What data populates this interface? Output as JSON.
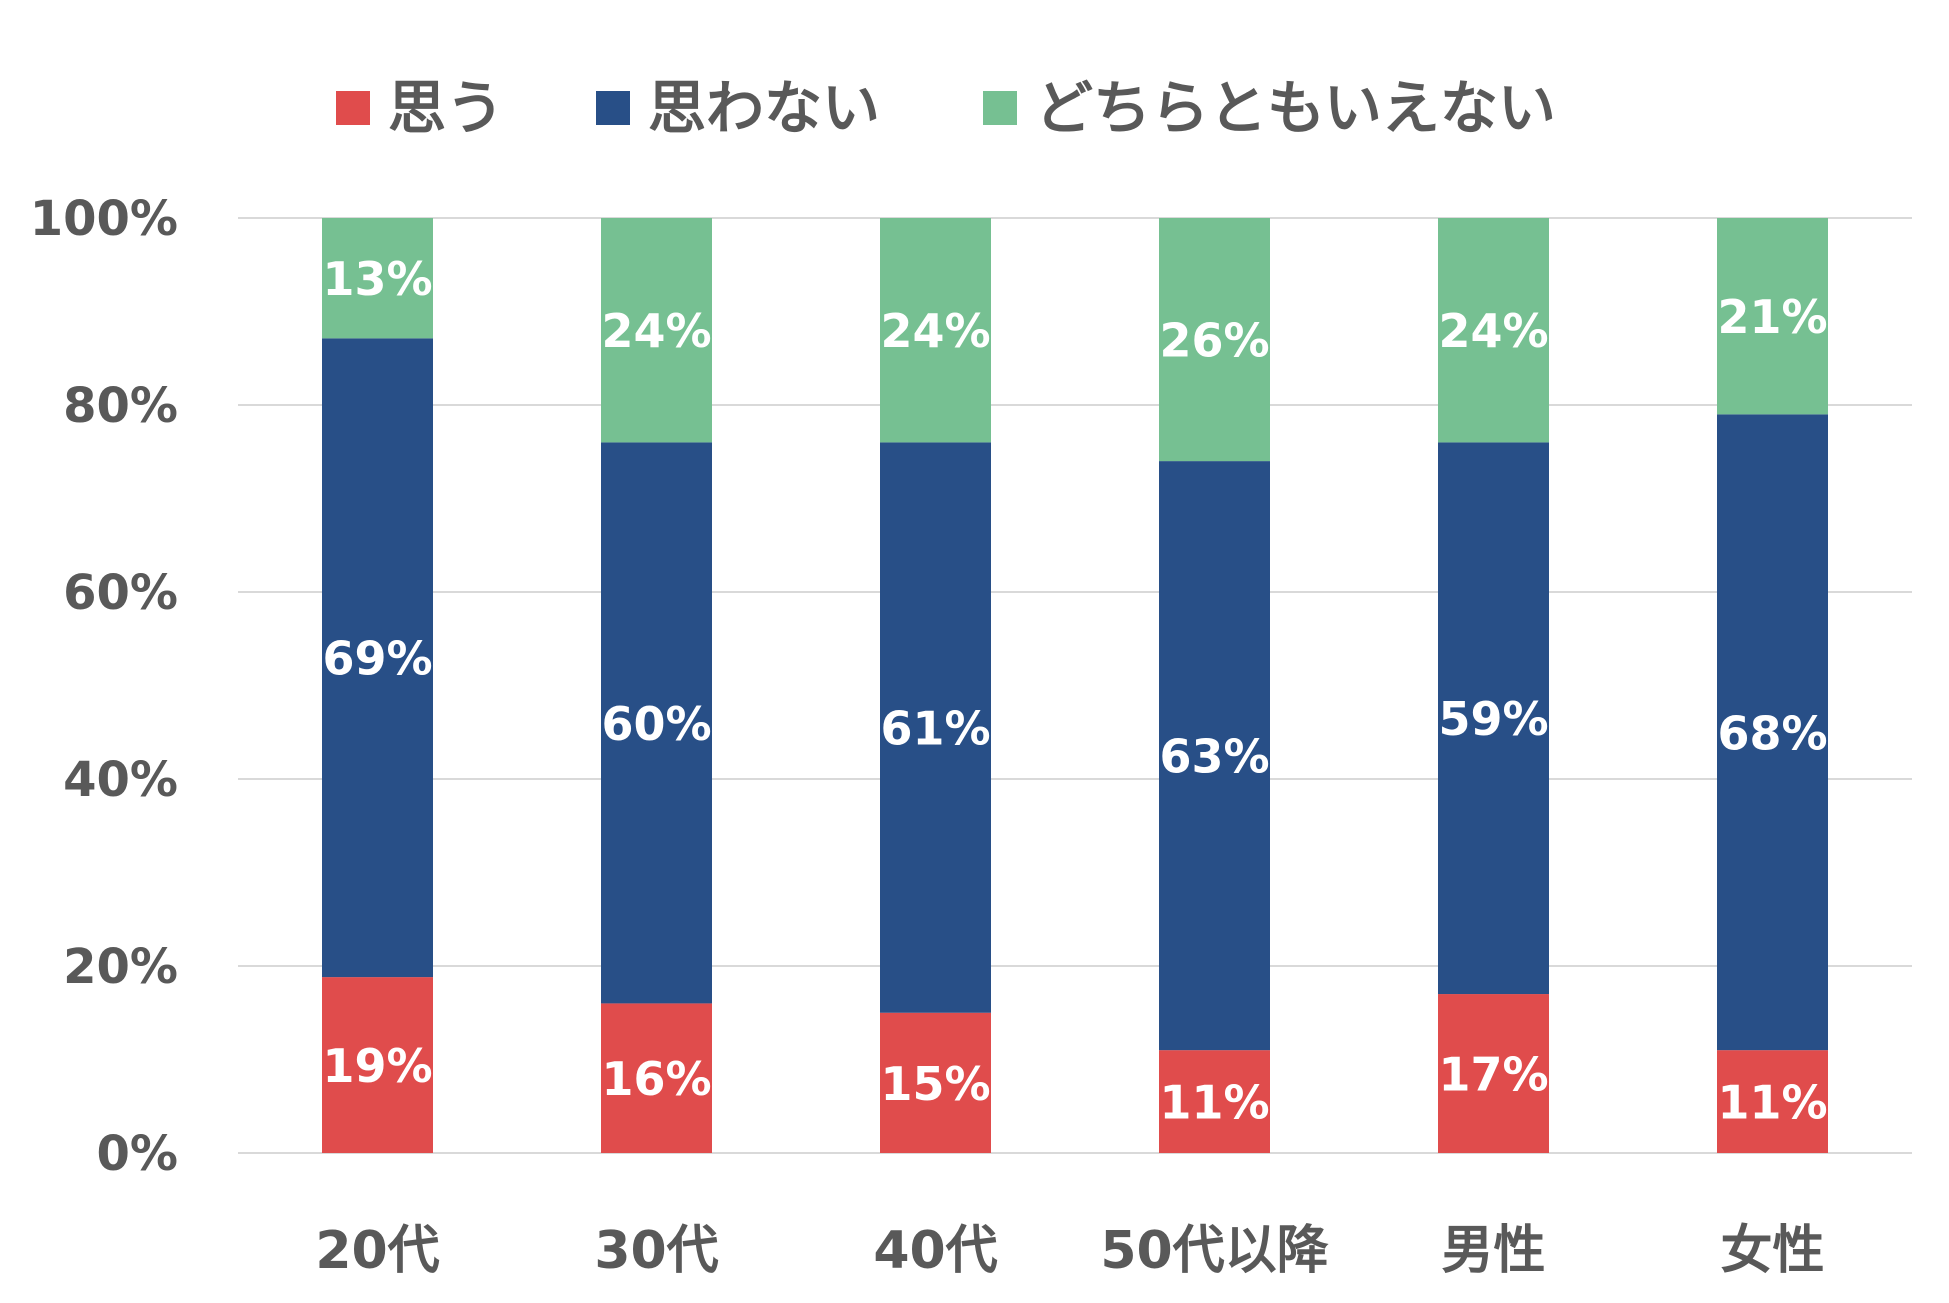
{
  "chart_data": {
    "type": "bar",
    "stacked": true,
    "categories": [
      "20代",
      "30代",
      "40代",
      "50代以降",
      "男性",
      "女性"
    ],
    "series": [
      {
        "name": "思う",
        "color": "#e04c4c",
        "values": [
          19,
          16,
          15,
          11,
          17,
          11
        ],
        "labels": [
          "19%",
          "16%",
          "15%",
          "11%",
          "17%",
          "11%"
        ]
      },
      {
        "name": "思わない",
        "color": "#284f87",
        "values": [
          69,
          60,
          61,
          63,
          59,
          68
        ],
        "labels": [
          "69%",
          "60%",
          "61%",
          "63%",
          "59%",
          "68%"
        ]
      },
      {
        "name": "どちらともいえない",
        "color": "#76c092",
        "values": [
          13,
          24,
          24,
          26,
          24,
          21
        ],
        "labels": [
          "13%",
          "24%",
          "24%",
          "26%",
          "24%",
          "21%"
        ]
      }
    ],
    "yticks": [
      "0%",
      "20%",
      "40%",
      "60%",
      "80%",
      "100%"
    ],
    "ylim": [
      0,
      100
    ],
    "legend": "top",
    "grid": true
  }
}
